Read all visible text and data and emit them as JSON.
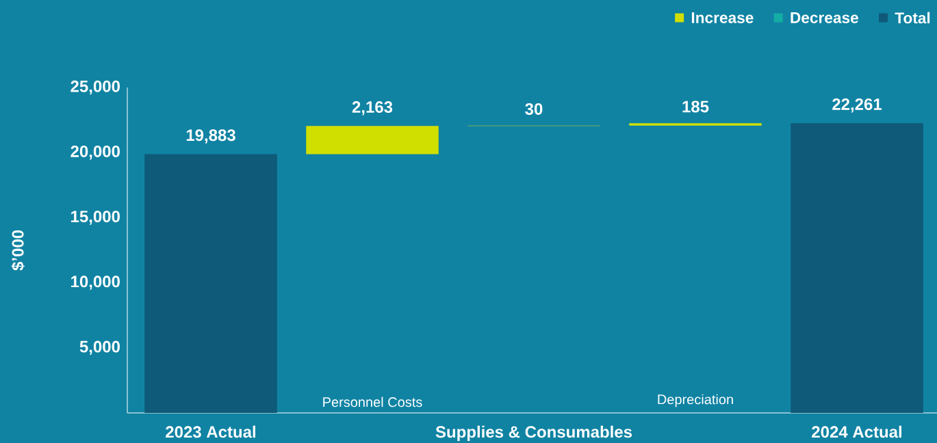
{
  "chart_data": {
    "type": "bar",
    "ylabel": "$’000",
    "categories": [
      "2023 Actual",
      "Personnel Costs",
      "Supplies & Consumables",
      "Depreciation",
      "2024 Actual"
    ],
    "series": [
      {
        "name": "Increase",
        "color": "#d0df00",
        "values": [
          null,
          2163,
          30,
          185,
          null
        ],
        "base": [
          null,
          19883,
          22046,
          22076,
          null
        ],
        "value_labels": [
          null,
          "2,163",
          "30",
          "185",
          null
        ]
      },
      {
        "name": "Decrease",
        "color": "#14ada5",
        "values": [
          null,
          null,
          null,
          null,
          null
        ]
      },
      {
        "name": "Total",
        "color": "#0f5a78",
        "values": [
          19883,
          null,
          null,
          null,
          22261
        ],
        "base": [
          0,
          null,
          null,
          null,
          0
        ],
        "value_labels": [
          "19,883",
          null,
          null,
          null,
          "22,261"
        ]
      }
    ],
    "ylim": [
      0,
      25000
    ],
    "yticks": [
      {
        "value": 5000,
        "label": "5,000"
      },
      {
        "value": 10000,
        "label": "10,000"
      },
      {
        "value": 15000,
        "label": "15,000"
      },
      {
        "value": 20000,
        "label": "20,000"
      },
      {
        "value": 25000,
        "label": "25,000"
      }
    ],
    "legend": "top right"
  }
}
